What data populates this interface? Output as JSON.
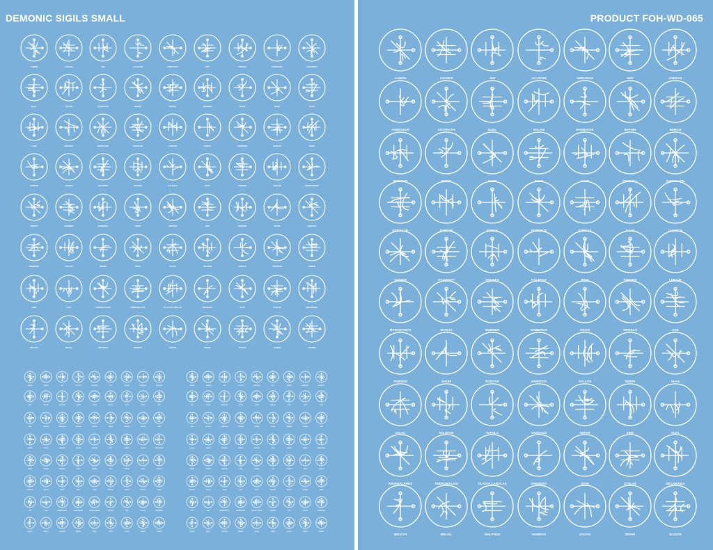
{
  "sheets": {
    "left_title": "DEMONIC SIGILS SMALL",
    "right_title": "PRODUCT FOH-WD-065"
  },
  "colors": {
    "background": "#7ab0d9",
    "ink": "#ffffff",
    "gutter": "#ffffff"
  },
  "large_sigil_names": [
    "AAMON",
    "ASARES",
    "AIM",
    "ALLOCER",
    "AMDUSIAS",
    "AMY",
    "ANDRAS",
    "ASMODEUS",
    "ASTAROTH",
    "BAEL",
    "BALAM",
    "BARBATOS",
    "BATHIN",
    "BERITH",
    "BIFRONS",
    "BOTIS",
    "BUER",
    "BUNE",
    "CAIM",
    "CROCELL",
    "DANTALION",
    "FOCALOR",
    "FORFUR",
    "FORAS",
    "FORNEUS",
    "FURCAS",
    "GAAP",
    "GAMIGIN",
    "GUSION",
    "HAAGENTI",
    "HAURES",
    "HALPHAS",
    "IPOS",
    "KIMARIS",
    "LERAJE",
    "MARCHOSIAS",
    "MORAX",
    "MURMUR",
    "NABERIUS",
    "ORIAS",
    "OROBAS",
    "OSE",
    "PURSON",
    "RAUM",
    "RONOVE",
    "SABNOCK",
    "SALLOS",
    "SEERE",
    "SHAX",
    "VALAC",
    "VALEFAR",
    "VAPULA",
    "VASSAGO",
    "VEPAR",
    "VINE",
    "VUAL",
    "ANDREALPHUS",
    "ANDROMALIUS",
    "GLASYA LABOLAS",
    "GREMORY",
    "SITRI",
    "STOLAS",
    "DECARABIA",
    "BELETH",
    "BELIAL",
    "MALPHAS",
    "MARBAS",
    "ZAGAN",
    "ZEPAR",
    "ELIGOS"
  ]
}
